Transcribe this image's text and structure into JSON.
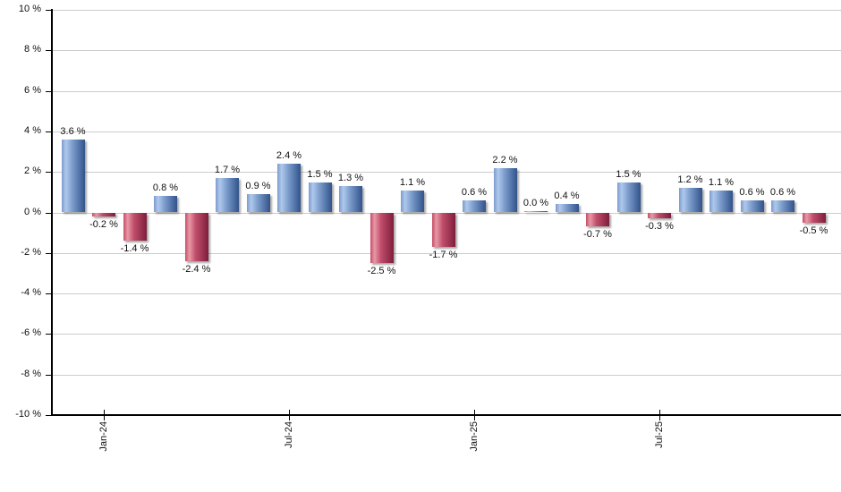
{
  "chart_data": {
    "type": "bar",
    "title": "",
    "values": [
      3.6,
      -0.2,
      -1.4,
      0.8,
      -2.4,
      1.7,
      0.9,
      2.4,
      1.5,
      1.3,
      -2.5,
      1.1,
      -1.7,
      0.6,
      2.2,
      0.0,
      0.4,
      -0.7,
      1.5,
      -0.3,
      1.2,
      1.1,
      0.6,
      0.6,
      -0.5
    ],
    "bar_value_labels": [
      "3.6 %",
      "-0.2 %",
      "-1.4 %",
      "0.8 %",
      "-2.4 %",
      "1.7 %",
      "0.9 %",
      "2.4 %",
      "1.5 %",
      "1.3 %",
      "-2.5 %",
      "1.1 %",
      "-1.7 %",
      "0.6 %",
      "2.2 %",
      "0.0 %",
      "0.4 %",
      "-0.7 %",
      "1.5 %",
      "-0.3 %",
      "1.2 %",
      "1.1 %",
      "0.6 %",
      "0.6 %",
      "-0.5 %"
    ],
    "x_ticks": [
      {
        "label": "Jan-24",
        "bar_index": 1
      },
      {
        "label": "Jul-24",
        "bar_index": 7
      },
      {
        "label": "Jan-25",
        "bar_index": 13
      },
      {
        "label": "Jul-25",
        "bar_index": 19
      }
    ],
    "y_tick_labels": [
      "10 %",
      "8 %",
      "6 %",
      "4 %",
      "2 %",
      "0 %",
      "-2 %",
      "-4 %",
      "-6 %",
      "-8 %",
      "-10 %"
    ],
    "ylim": [
      -10,
      10
    ],
    "y_tick_step": 2,
    "grid": true,
    "legend_position": "none",
    "colors": {
      "positive_gradient": [
        "#7C9ACE",
        "#AFC9EC",
        "#7E9ECD",
        "#31538B"
      ],
      "negative_gradient": [
        "#C54F68",
        "#E898A6",
        "#C04E6B",
        "#7E1E3C"
      ],
      "gridline": "#CCCCCC",
      "axis": "#000000",
      "label_text": "#111111"
    }
  }
}
